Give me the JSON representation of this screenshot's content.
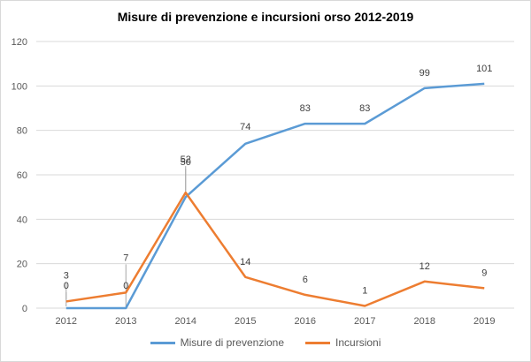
{
  "chart_data": {
    "type": "line",
    "title": "Misure di prevenzione e incursioni orso 2012-2019",
    "categories": [
      "2012",
      "2013",
      "2014",
      "2015",
      "2016",
      "2017",
      "2018",
      "2019"
    ],
    "ylim": [
      0,
      120
    ],
    "yticks": [
      0,
      20,
      40,
      60,
      80,
      100,
      120
    ],
    "grid": true,
    "legend_position": "bottom",
    "series": [
      {
        "name": "Misure di prevenzione",
        "color": "#5b9bd5",
        "values": [
          0,
          0,
          50,
          74,
          83,
          83,
          99,
          101
        ]
      },
      {
        "name": "Incursioni",
        "color": "#ed7d31",
        "values": [
          3,
          7,
          52,
          14,
          6,
          1,
          12,
          9
        ]
      }
    ]
  }
}
